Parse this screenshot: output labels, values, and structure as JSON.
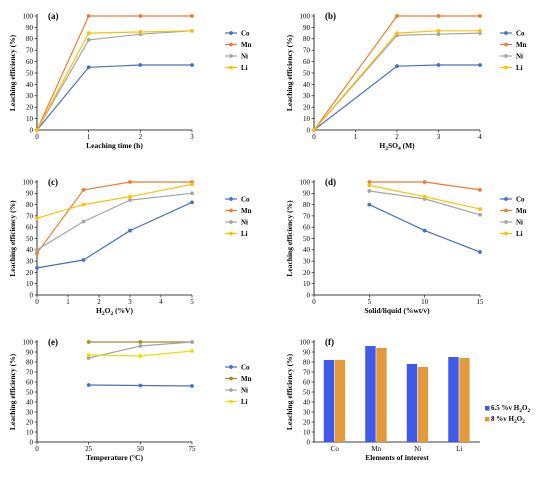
{
  "colors": {
    "co": "#4472C4",
    "mn": "#ED7D31",
    "ni": "#A5A5A5",
    "li": "#FFC000",
    "mn_e": "#A58D1E",
    "li_e": "#E8E000",
    "bar1": "#3F59E8",
    "bar2": "#E39A3A"
  },
  "chart_data": [
    {
      "type": "line",
      "panel_label": "(a)",
      "xlabel": "Leaching time (h)",
      "ylabel": "Leaching efficiency (%)",
      "x": [
        0,
        1,
        2,
        3
      ],
      "xlim": [
        0,
        3
      ],
      "xticks": [
        "0",
        "1",
        "2",
        "3"
      ],
      "ylim": [
        0,
        100
      ],
      "yticks": [
        "0",
        "10",
        "20",
        "30",
        "40",
        "50",
        "60",
        "70",
        "80",
        "90",
        "100"
      ],
      "legend": "right",
      "series": [
        {
          "name": "Co",
          "values": [
            0,
            55,
            57,
            57
          ]
        },
        {
          "name": "Mn",
          "values": [
            0,
            100,
            100,
            100
          ]
        },
        {
          "name": "Ni",
          "values": [
            0,
            79,
            84,
            87
          ]
        },
        {
          "name": "Li",
          "values": [
            0,
            85,
            86,
            87
          ]
        }
      ]
    },
    {
      "type": "line",
      "panel_label": "(b)",
      "xlabel_parts": [
        "H",
        "2",
        "SO",
        "4",
        " (M)"
      ],
      "ylabel": "Leaching efficiency (%)",
      "x": [
        0,
        2,
        3,
        4
      ],
      "xlim": [
        0,
        4
      ],
      "xticks": [
        "0",
        "1",
        "2",
        "3",
        "4"
      ],
      "ylim": [
        0,
        100
      ],
      "yticks": [
        "0",
        "10",
        "20",
        "30",
        "40",
        "50",
        "60",
        "70",
        "80",
        "90",
        "100"
      ],
      "legend": "right",
      "series": [
        {
          "name": "Co",
          "values": [
            0,
            56,
            57,
            57
          ]
        },
        {
          "name": "Mn",
          "values": [
            0,
            100,
            100,
            100
          ]
        },
        {
          "name": "Ni",
          "values": [
            0,
            83,
            84,
            85
          ]
        },
        {
          "name": "Li",
          "values": [
            0,
            85,
            87,
            87
          ]
        }
      ]
    },
    {
      "type": "line",
      "panel_label": "(c)",
      "xlabel_parts": [
        "H",
        "2",
        "O",
        "2",
        " (%V)"
      ],
      "ylabel": "Leaching efficiency (%)",
      "x": [
        0,
        1.5,
        3,
        5
      ],
      "xlim": [
        0,
        5
      ],
      "xticks": [
        "0",
        "1",
        "2",
        "3",
        "4",
        "5"
      ],
      "ylim": [
        0,
        100
      ],
      "yticks": [
        "0",
        "10",
        "20",
        "30",
        "40",
        "50",
        "60",
        "70",
        "80",
        "90",
        "100"
      ],
      "legend": "right",
      "series": [
        {
          "name": "Co",
          "values": [
            24,
            31,
            57,
            82
          ]
        },
        {
          "name": "Mn",
          "values": [
            37,
            93,
            100,
            100
          ]
        },
        {
          "name": "Ni",
          "values": [
            40,
            65,
            84,
            90
          ]
        },
        {
          "name": "Li",
          "values": [
            68,
            80,
            87,
            98
          ]
        }
      ]
    },
    {
      "type": "line",
      "panel_label": "(d)",
      "xlabel": "Solid/liquid (%wt/v)",
      "ylabel": "Leaching efficiency (%)",
      "x": [
        5,
        10,
        15
      ],
      "xlim": [
        0,
        15
      ],
      "xticks": [
        "0",
        "5",
        "10",
        "15"
      ],
      "ylim": [
        0,
        100
      ],
      "yticks": [
        "0",
        "10",
        "20",
        "30",
        "40",
        "50",
        "60",
        "70",
        "80",
        "90",
        "100"
      ],
      "legend": "right",
      "series": [
        {
          "name": "Co",
          "values": [
            80,
            57,
            38
          ]
        },
        {
          "name": "Mn",
          "values": [
            100,
            100,
            93
          ]
        },
        {
          "name": "Ni",
          "values": [
            92,
            85,
            71
          ]
        },
        {
          "name": "Li",
          "values": [
            97,
            87,
            76
          ]
        }
      ]
    },
    {
      "type": "line",
      "panel_label": "(e)",
      "xlabel": "Temperature (°C)",
      "ylabel": "Leaching efficiency (%)",
      "x": [
        25,
        50,
        75
      ],
      "xlim": [
        0,
        75
      ],
      "xticks": [
        "0",
        "25",
        "50",
        "75"
      ],
      "ylim": [
        0,
        100
      ],
      "yticks": [
        "0",
        "10",
        "20",
        "30",
        "40",
        "50",
        "60",
        "70",
        "80",
        "90",
        "100"
      ],
      "legend": "right",
      "series": [
        {
          "name": "Co",
          "values": [
            57,
            56.5,
            56
          ]
        },
        {
          "name": "Mn",
          "values": [
            100,
            100,
            100
          ]
        },
        {
          "name": "Ni",
          "values": [
            84,
            96,
            100
          ]
        },
        {
          "name": "Li",
          "values": [
            87,
            86,
            91
          ]
        }
      ]
    },
    {
      "type": "bar",
      "panel_label": "(f)",
      "xlabel": "Elements of interest",
      "ylabel": "Leaching efficiency (%)",
      "categories": [
        "Co",
        "Mn",
        "Ni",
        "Li"
      ],
      "ylim": [
        0,
        100
      ],
      "yticks": [
        "0",
        "10",
        "20",
        "30",
        "40",
        "50",
        "60",
        "70",
        "80",
        "90",
        "100"
      ],
      "legend": "right",
      "series": [
        {
          "name_parts": [
            "6.5 %v H",
            "2",
            "O",
            "2"
          ],
          "values": [
            82,
            96,
            78,
            85
          ]
        },
        {
          "name_parts": [
            "8 %v H",
            "2",
            "O",
            "2"
          ],
          "values": [
            82,
            94,
            75,
            84
          ]
        }
      ]
    }
  ]
}
